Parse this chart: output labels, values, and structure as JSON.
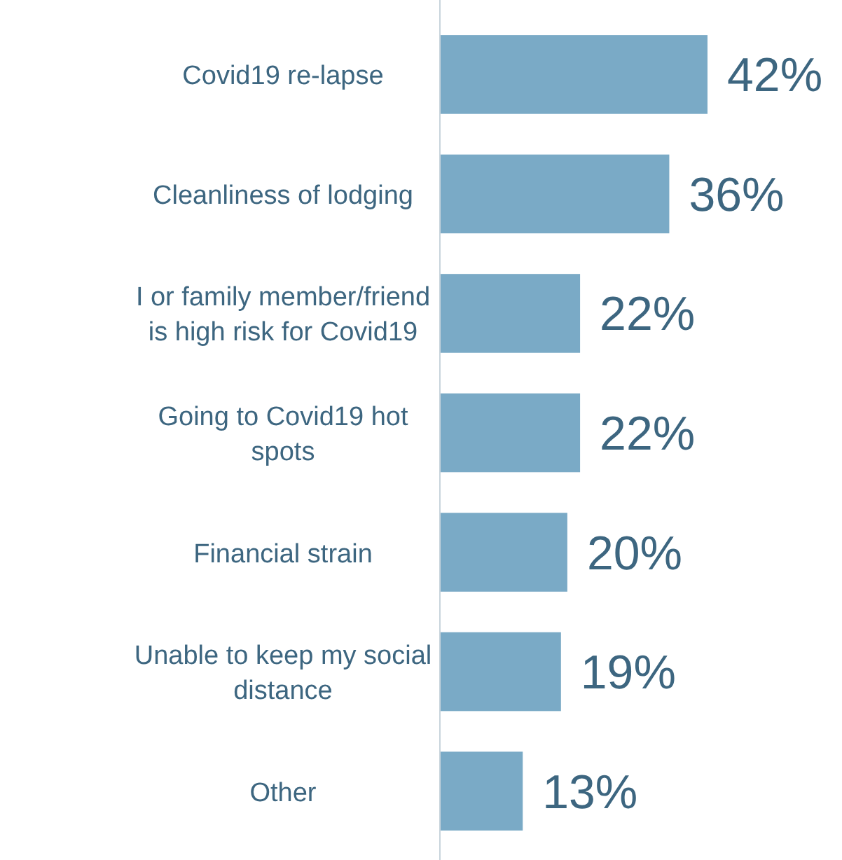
{
  "chart_data": {
    "type": "bar",
    "orientation": "horizontal",
    "categories": [
      "Covid19 re-lapse",
      "Cleanliness of lodging",
      "I or family member/friend\nis high risk for Covid19",
      "Going to Covid19 hot\nspots",
      "Financial strain",
      "Unable to keep my social\ndistance",
      "Other"
    ],
    "values": [
      42,
      36,
      22,
      22,
      20,
      19,
      13
    ],
    "value_labels": [
      "42%",
      "36%",
      "22%",
      "22%",
      "20%",
      "19%",
      "13%"
    ],
    "color": "#7aaac6"
  }
}
